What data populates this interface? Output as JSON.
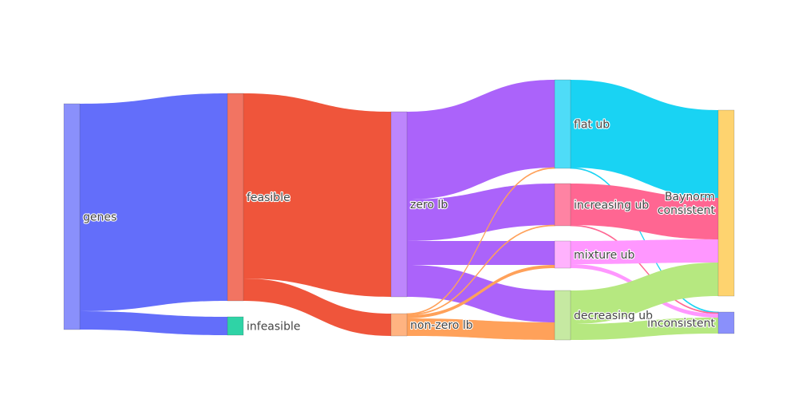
{
  "chart_data": {
    "type": "sankey",
    "title": "",
    "nodes": [
      {
        "id": "genes",
        "label": "genes",
        "color": "#8a90fb"
      },
      {
        "id": "feasible",
        "label": "feasible",
        "color": "#f27462"
      },
      {
        "id": "infeasible",
        "label": "infeasible",
        "color": "#2fd3a6"
      },
      {
        "id": "zero_lb",
        "label": "zero lb",
        "color": "#bd86fc"
      },
      {
        "id": "nonzero_lb",
        "label": "non-zero lb",
        "color": "#ffb381"
      },
      {
        "id": "flat_ub",
        "label": "flat ub",
        "color": "#4fdcf7"
      },
      {
        "id": "increasing_ub",
        "label": "increasing ub",
        "color": "#fe83a3"
      },
      {
        "id": "mixture_ub",
        "label": "mixture ub",
        "color": "#ffb2fd"
      },
      {
        "id": "decreasing_ub",
        "label": "decreasing ub",
        "color": "#c6e9a2"
      },
      {
        "id": "baynorm_consistent",
        "label": "Baynorm\nconsistent",
        "color": "#fed36f"
      },
      {
        "id": "inconsistent",
        "label": "inconsistent",
        "color": "#8a90fb"
      }
    ],
    "links": [
      {
        "source": "genes",
        "target": "feasible",
        "value": 260,
        "color": "#636efa"
      },
      {
        "source": "genes",
        "target": "infeasible",
        "value": 23,
        "color": "#636efa"
      },
      {
        "source": "feasible",
        "target": "zero_lb",
        "value": 232,
        "color": "#ef553b"
      },
      {
        "source": "feasible",
        "target": "nonzero_lb",
        "value": 28,
        "color": "#ef553b"
      },
      {
        "source": "zero_lb",
        "target": "flat_ub",
        "value": 110,
        "color": "#ab63fa"
      },
      {
        "source": "zero_lb",
        "target": "increasing_ub",
        "value": 52,
        "color": "#ab63fa"
      },
      {
        "source": "zero_lb",
        "target": "mixture_ub",
        "value": 30,
        "color": "#ab63fa"
      },
      {
        "source": "zero_lb",
        "target": "decreasing_ub",
        "value": 40,
        "color": "#ab63fa"
      },
      {
        "source": "nonzero_lb",
        "target": "flat_ub",
        "value": 1,
        "color": "#ffa15a"
      },
      {
        "source": "nonzero_lb",
        "target": "increasing_ub",
        "value": 1,
        "color": "#ffa15a"
      },
      {
        "source": "nonzero_lb",
        "target": "mixture_ub",
        "value": 4,
        "color": "#ffa15a"
      },
      {
        "source": "nonzero_lb",
        "target": "decreasing_ub",
        "value": 22,
        "color": "#ffa15a"
      },
      {
        "source": "flat_ub",
        "target": "baynorm_consistent",
        "value": 110,
        "color": "#19d3f3"
      },
      {
        "source": "flat_ub",
        "target": "inconsistent",
        "value": 1,
        "color": "#19d3f3"
      },
      {
        "source": "increasing_ub",
        "target": "baynorm_consistent",
        "value": 52,
        "color": "#ff6692"
      },
      {
        "source": "increasing_ub",
        "target": "inconsistent",
        "value": 1,
        "color": "#ff6692"
      },
      {
        "source": "mixture_ub",
        "target": "baynorm_consistent",
        "value": 29,
        "color": "#ff97ff"
      },
      {
        "source": "mixture_ub",
        "target": "inconsistent",
        "value": 5,
        "color": "#ff97ff"
      },
      {
        "source": "decreasing_ub",
        "target": "baynorm_consistent",
        "value": 42,
        "color": "#b6e880"
      },
      {
        "source": "decreasing_ub",
        "target": "inconsistent",
        "value": 20,
        "color": "#b6e880"
      }
    ]
  }
}
